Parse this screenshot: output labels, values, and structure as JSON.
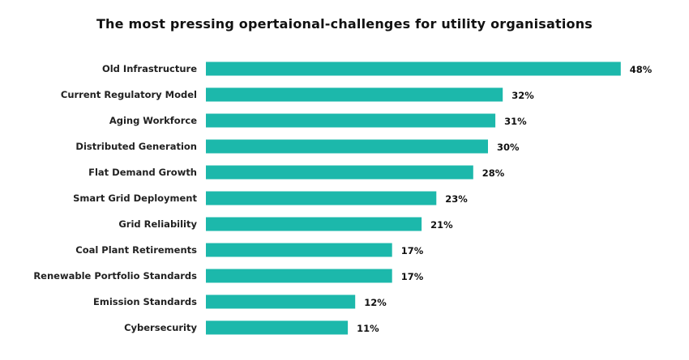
{
  "chart_data": {
    "type": "bar",
    "orientation": "horizontal",
    "title": "The most pressing opertaional-challenges for utility organisations",
    "categories": [
      "Old Infrastructure",
      "Current Regulatory Model",
      "Aging Workforce",
      "Distributed Generation",
      "Flat Demand Growth",
      "Smart Grid Deployment",
      "Grid Reliability",
      "Coal Plant Retirements",
      "Renewable Portfolio Standards",
      "Emission Standards",
      "Cybersecurity"
    ],
    "values": [
      48,
      32,
      31,
      30,
      28,
      23,
      21,
      17,
      17,
      12,
      11
    ],
    "value_labels": [
      "48%",
      "32%",
      "31%",
      "30%",
      "28%",
      "23%",
      "21%",
      "17%",
      "17%",
      "12%",
      "11%"
    ],
    "xlabel": "",
    "ylabel": "",
    "grid": false,
    "legend": "none",
    "bar_color": "#1cb8ab"
  }
}
